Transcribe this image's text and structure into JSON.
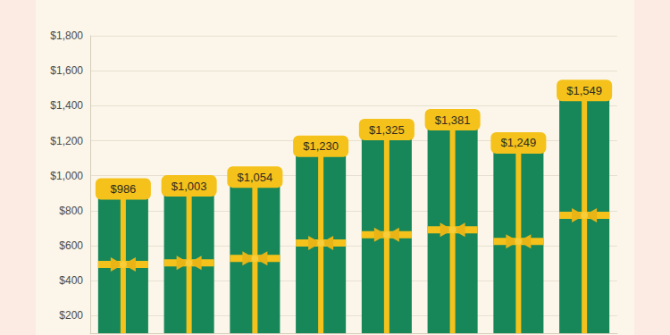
{
  "chart_data": {
    "type": "bar",
    "categories": [
      null,
      null,
      null,
      null,
      null,
      null,
      null,
      null
    ],
    "values": [
      986,
      1003,
      1054,
      1230,
      1325,
      1381,
      1249,
      1549
    ],
    "value_labels": [
      "$986",
      "$1,003",
      "$1,054",
      "$1,230",
      "$1,325",
      "$1,381",
      "$1,249",
      "$1,549"
    ],
    "color": "#17875a",
    "ylim": [
      100,
      1800
    ],
    "yticks": [
      {
        "value": 200,
        "label": "$200"
      },
      {
        "value": 400,
        "label": "$400"
      },
      {
        "value": 600,
        "label": "$600"
      },
      {
        "value": 800,
        "label": "$800"
      },
      {
        "value": 1000,
        "label": "$1,000"
      },
      {
        "value": 1200,
        "label": "$1,200"
      },
      {
        "value": 1400,
        "label": "$1,400"
      },
      {
        "value": 1600,
        "label": "$1,600"
      },
      {
        "value": 1800,
        "label": "$1,800"
      }
    ],
    "grid": true,
    "data_labels": true,
    "tick_labels": "y"
  }
}
